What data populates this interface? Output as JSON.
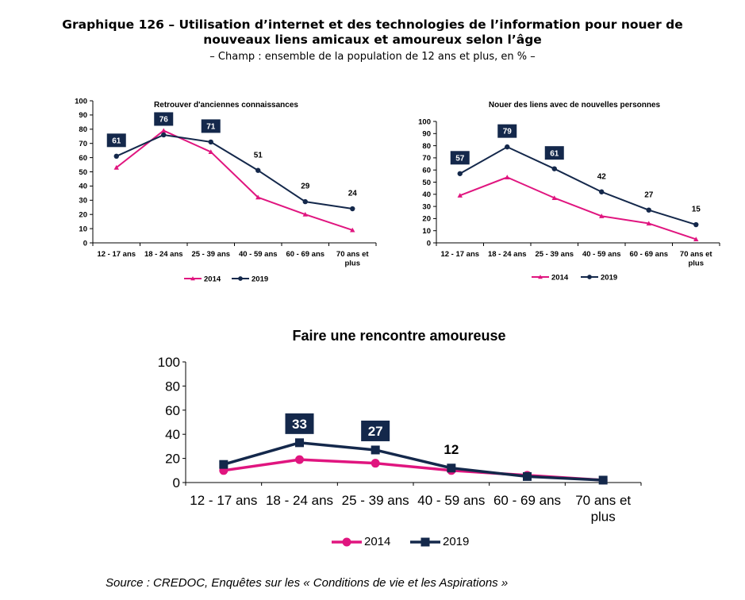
{
  "header": {
    "title_line1": "Graphique 126 – Utilisation d’internet et des technologies de l’information pour nouer de",
    "title_line2": "nouveaux liens amicaux et amoureux selon l’âge",
    "subtitle": "– Champ : ensemble de la population de 12 ans et plus, en % –"
  },
  "footer": {
    "source": "Source : CREDOC, Enquêtes sur les « Conditions de vie et les Aspirations »"
  },
  "colors": {
    "2014": "#e0157f",
    "2019": "#14284b",
    "label_box": "#14284b"
  },
  "chart_data": [
    {
      "type": "line",
      "title": "Retrouver d'anciennes connaissances",
      "categories": [
        "12 - 17 ans",
        "18 - 24 ans",
        "25 - 39 ans",
        "40 - 59 ans",
        "60 - 69 ans",
        "70 ans et plus"
      ],
      "series": [
        {
          "name": "2014",
          "values": [
            53,
            79,
            64,
            32,
            20,
            9
          ]
        },
        {
          "name": "2019",
          "values": [
            61,
            76,
            71,
            51,
            29,
            24
          ]
        }
      ],
      "data_labels": {
        "series": "2019",
        "values": [
          "61",
          "76",
          "71",
          "51",
          "29",
          "24"
        ],
        "boxed": [
          true,
          true,
          true,
          false,
          false,
          false
        ]
      },
      "ylim": [
        0,
        100
      ],
      "yticks": [
        0,
        10,
        20,
        30,
        40,
        50,
        60,
        70,
        80,
        90,
        100
      ],
      "legend": "bottom",
      "grid": false
    },
    {
      "type": "line",
      "title": "Nouer des liens avec de nouvelles personnes",
      "categories": [
        "12 - 17 ans",
        "18 - 24 ans",
        "25 - 39 ans",
        "40 - 59 ans",
        "60 - 69 ans",
        "70 ans et plus"
      ],
      "series": [
        {
          "name": "2014",
          "values": [
            39,
            54,
            37,
            22,
            16,
            3
          ]
        },
        {
          "name": "2019",
          "values": [
            57,
            79,
            61,
            42,
            27,
            15
          ]
        }
      ],
      "data_labels": {
        "series": "2019",
        "values": [
          "57",
          "79",
          "61",
          "42",
          "27",
          "15"
        ],
        "boxed": [
          true,
          true,
          true,
          false,
          false,
          false
        ]
      },
      "ylim": [
        0,
        100
      ],
      "yticks": [
        0,
        10,
        20,
        30,
        40,
        50,
        60,
        70,
        80,
        90,
        100
      ],
      "legend": "bottom",
      "grid": false
    },
    {
      "type": "line",
      "title": "Faire une rencontre amoureuse",
      "categories": [
        "12 - 17 ans",
        "18 - 24 ans",
        "25 - 39 ans",
        "40 - 59 ans",
        "60 - 69 ans",
        "70 ans et plus"
      ],
      "series": [
        {
          "name": "2014",
          "values": [
            10,
            19,
            16,
            10,
            6,
            2
          ]
        },
        {
          "name": "2019",
          "values": [
            15,
            33,
            27,
            12,
            5,
            2
          ]
        }
      ],
      "data_labels": {
        "series": "2019",
        "values": [
          "33",
          "27",
          "12"
        ],
        "indices": [
          1,
          2,
          3
        ],
        "boxed": [
          true,
          true,
          false
        ]
      },
      "ylim": [
        0,
        100
      ],
      "yticks": [
        0,
        20,
        40,
        60,
        80,
        100
      ],
      "legend": "bottom",
      "grid": false
    }
  ]
}
